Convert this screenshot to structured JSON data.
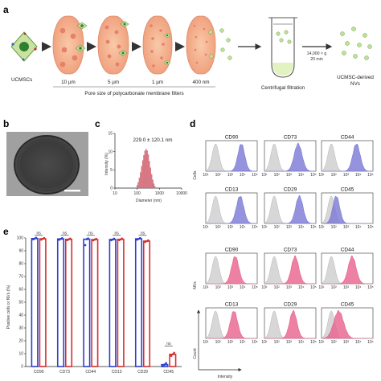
{
  "panel_a": {
    "letter": "a",
    "source_label": "UCMSCs",
    "filter_pores": [
      "10 µm",
      "5 µm",
      "1 µm",
      "400 nm"
    ],
    "filter_caption": "Pore size of polycarbonate membrane filters",
    "filtration_label": "Centrifugal filtration",
    "spin_speed": "14,000 × g",
    "spin_time": "20 min",
    "product_label_line1": "UCMSC-derived",
    "product_label_line2": "NVs"
  },
  "panel_b": {
    "letter": "b"
  },
  "panel_c": {
    "letter": "c",
    "annotation": "229.0 ± 120.1 nm",
    "chart_data": {
      "type": "bar",
      "x_scale": "log",
      "xlabel": "Diameter (nm)",
      "ylabel": "Intensity (%)",
      "xlim": [
        10,
        10000
      ],
      "ylim": [
        0,
        15
      ],
      "x_ticks": [
        "10",
        "100",
        "1000",
        "10000"
      ],
      "y_ticks": [
        "0",
        "5",
        "10",
        "15"
      ],
      "color": "#e07a86",
      "x": [
        100,
        112,
        126,
        141,
        158,
        178,
        200,
        224,
        251,
        282,
        316,
        355,
        398,
        447,
        501,
        562,
        631
      ],
      "values": [
        0.8,
        1.6,
        2.8,
        4.3,
        6.0,
        7.6,
        9.0,
        10.2,
        10.7,
        10.3,
        9.2,
        7.4,
        5.6,
        3.8,
        2.3,
        1.2,
        0.5
      ]
    }
  },
  "panel_d": {
    "letter": "d",
    "cells_label": "Cells",
    "nvs_label": "NVs",
    "count_label": "Count",
    "intensity_label": "Intensity",
    "x_ticks": [
      "10¹",
      "10²",
      "10³",
      "10⁴",
      "10⁵"
    ],
    "markers_row1": [
      "CD90",
      "CD73",
      "CD44"
    ],
    "markers_row2": [
      "CD13",
      "CD29",
      "CD45"
    ],
    "cells_color": "#7b78d4",
    "nvs_color": "#e8628c",
    "control_color": "#d7d7d7"
  },
  "panel_e": {
    "letter": "e",
    "chart_data": {
      "type": "bar",
      "ylabel": "Positive cells or NVs (%)",
      "ylim": [
        0,
        100
      ],
      "y_ticks": [
        "0",
        "10",
        "20",
        "30",
        "40",
        "50",
        "60",
        "70",
        "80",
        "90",
        "100"
      ],
      "categories": [
        "CD90",
        "CD73",
        "CD44",
        "CD13",
        "CD29",
        "CD45"
      ],
      "series": [
        {
          "color": "#2c3fcf",
          "values": [
            99.5,
            99.2,
            99.0,
            98.8,
            99.3,
            1.5
          ]
        },
        {
          "color": "#d62f2f",
          "values": [
            99.3,
            98.9,
            98.7,
            98.9,
            97.5,
            9.5
          ]
        }
      ],
      "significance": [
        "ns",
        "ns",
        "ns",
        "ns",
        "ns",
        "ns"
      ]
    }
  }
}
